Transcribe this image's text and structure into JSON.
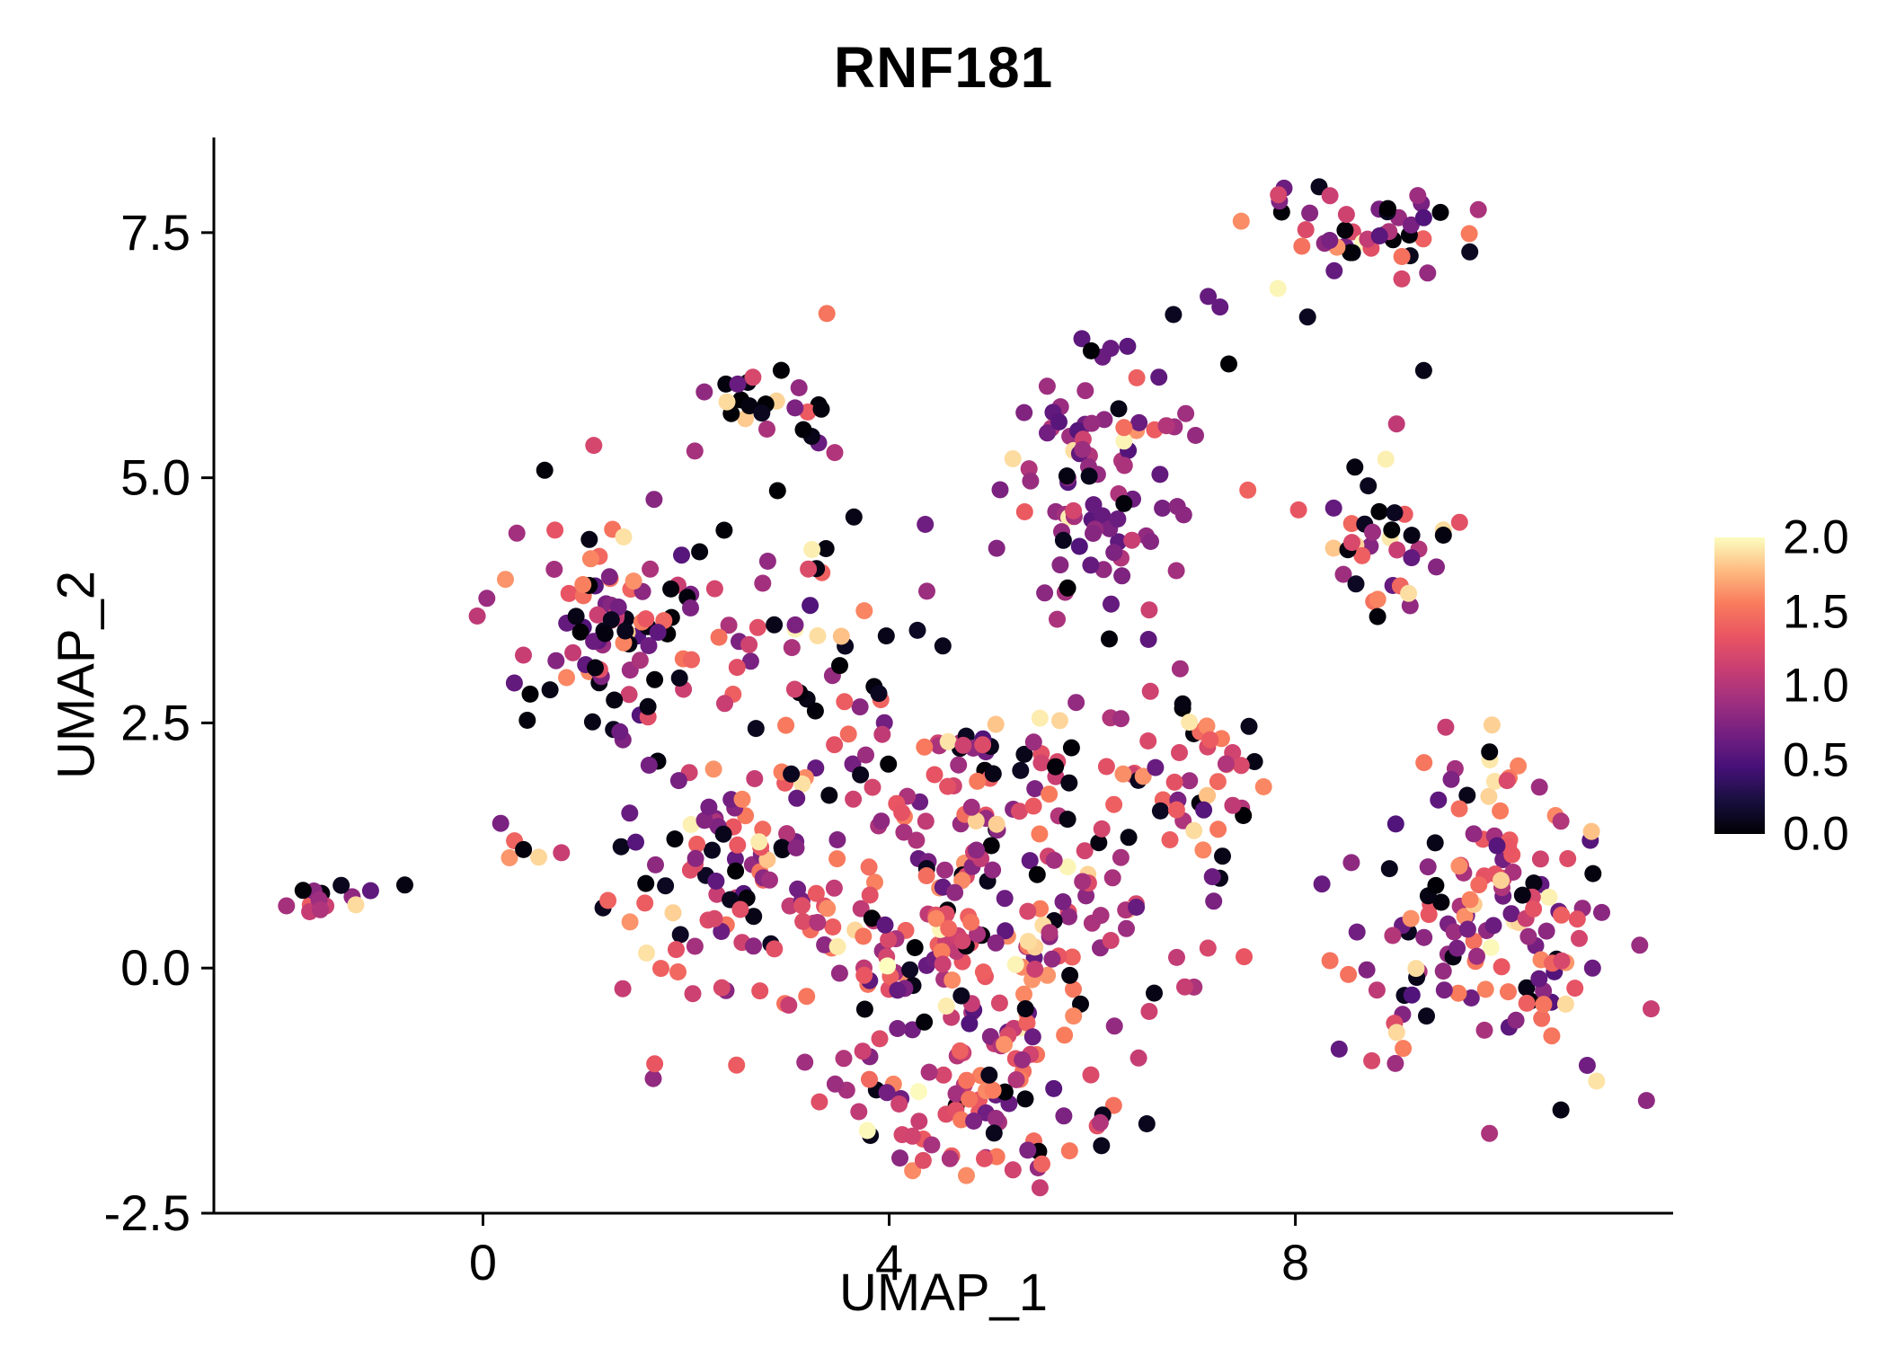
{
  "chart_data": {
    "type": "scatter",
    "title": "RNF181",
    "xlabel": "UMAP_1",
    "ylabel": "UMAP_2",
    "xlim": [
      -2.65,
      11.72
    ],
    "ylim": [
      -2.5,
      8.47
    ],
    "grid": false,
    "legend_position": "right",
    "xticks": [
      {
        "value": 0,
        "label": "0"
      },
      {
        "value": 4,
        "label": "4"
      },
      {
        "value": 8,
        "label": "8"
      }
    ],
    "yticks": [
      {
        "value": -2.5,
        "label": "-2.5"
      },
      {
        "value": 0,
        "label": "0.0"
      },
      {
        "value": 2.5,
        "label": "2.5"
      },
      {
        "value": 5,
        "label": "5.0"
      },
      {
        "value": 7.5,
        "label": "7.5"
      }
    ],
    "colorbar": {
      "range": [
        0,
        2
      ],
      "ticks": [
        {
          "value": 2.0,
          "label": "2.0"
        },
        {
          "value": 1.5,
          "label": "1.5"
        },
        {
          "value": 1.0,
          "label": "1.0"
        },
        {
          "value": 0.5,
          "label": "0.5"
        },
        {
          "value": 0.0,
          "label": "0.0"
        }
      ],
      "stops": [
        "#000004",
        "#180f3e",
        "#451077",
        "#721f81",
        "#9f2f7f",
        "#c83e73",
        "#e95562",
        "#f97c5d",
        "#febb81",
        "#fcfdbf"
      ]
    },
    "point_radius": 9.5,
    "seed": 11,
    "expr_levels": [
      [
        0,
        0.12
      ],
      [
        0.5,
        1.0
      ],
      [
        1.05,
        1.65
      ],
      [
        1.8,
        2.0
      ]
    ],
    "clusters": [
      {
        "name": "far-left-small",
        "cx": -1.45,
        "cy": 0.72,
        "sx": 0.22,
        "sy": 0.09,
        "n": 13,
        "mix": [
          0.2,
          0.4,
          0.3,
          0.1
        ]
      },
      {
        "name": "far-left-outlier",
        "cx": -0.75,
        "cy": 0.8,
        "sx": 0.05,
        "sy": 0.04,
        "n": 1,
        "mix": [
          1.0,
          0.0,
          0.0,
          0.0
        ]
      },
      {
        "name": "left-edge-pair",
        "cx": 0.45,
        "cy": 1.25,
        "sx": 0.18,
        "sy": 0.1,
        "n": 6,
        "mix": [
          0.3,
          0.1,
          0.5,
          0.1
        ]
      },
      {
        "name": "top-right",
        "cx": 8.6,
        "cy": 7.5,
        "sx": 0.55,
        "sy": 0.2,
        "n": 46,
        "mix": [
          0.3,
          0.3,
          0.32,
          0.08
        ]
      },
      {
        "name": "top-right-stragglers",
        "cx": 8.3,
        "cy": 6.5,
        "sx": 0.75,
        "sy": 0.4,
        "n": 5,
        "mix": [
          0.2,
          0.7,
          0.1,
          0.0
        ]
      },
      {
        "name": "upper-mid",
        "cx": 2.85,
        "cy": 5.75,
        "sx": 0.3,
        "sy": 0.33,
        "n": 27,
        "mix": [
          0.28,
          0.24,
          0.38,
          0.1
        ]
      },
      {
        "name": "purple-top-center",
        "cx": 6.05,
        "cy": 5.05,
        "sx": 0.46,
        "sy": 0.6,
        "n": 82,
        "mix": [
          0.06,
          0.82,
          0.1,
          0.02
        ]
      },
      {
        "name": "right-mid",
        "cx": 8.85,
        "cy": 4.3,
        "sx": 0.38,
        "sy": 0.4,
        "n": 38,
        "mix": [
          0.25,
          0.35,
          0.3,
          0.1
        ]
      },
      {
        "name": "left-big",
        "cx": 1.25,
        "cy": 3.6,
        "sx": 0.5,
        "sy": 0.58,
        "n": 95,
        "mix": [
          0.22,
          0.42,
          0.31,
          0.05
        ]
      },
      {
        "name": "mid-sparse",
        "cx": 3.3,
        "cy": 3.4,
        "sx": 0.85,
        "sy": 0.65,
        "n": 40,
        "mix": [
          0.3,
          0.3,
          0.35,
          0.05
        ]
      },
      {
        "name": "center-upper",
        "cx": 5.0,
        "cy": 2.1,
        "sx": 1.0,
        "sy": 0.45,
        "n": 55,
        "mix": [
          0.25,
          0.25,
          0.45,
          0.05
        ]
      },
      {
        "name": "center-left",
        "cx": 2.3,
        "cy": 0.8,
        "sx": 0.5,
        "sy": 0.75,
        "n": 65,
        "mix": [
          0.2,
          0.35,
          0.4,
          0.05
        ]
      },
      {
        "name": "center-main",
        "cx": 4.7,
        "cy": 0.35,
        "sx": 1.15,
        "sy": 0.9,
        "n": 250,
        "mix": [
          0.13,
          0.27,
          0.52,
          0.08
        ]
      },
      {
        "name": "center-lower",
        "cx": 4.9,
        "cy": -1.35,
        "sx": 0.75,
        "sy": 0.4,
        "n": 72,
        "mix": [
          0.15,
          0.35,
          0.45,
          0.05
        ]
      },
      {
        "name": "center-right-bump",
        "cx": 6.9,
        "cy": 1.8,
        "sx": 0.45,
        "sy": 0.5,
        "n": 40,
        "mix": [
          0.2,
          0.2,
          0.48,
          0.12
        ]
      },
      {
        "name": "right-big",
        "cx": 9.95,
        "cy": 0.35,
        "sx": 0.7,
        "sy": 0.8,
        "n": 135,
        "mix": [
          0.12,
          0.38,
          0.42,
          0.08
        ]
      },
      {
        "name": "right-big-top",
        "cx": 9.7,
        "cy": 1.95,
        "sx": 0.35,
        "sy": 0.22,
        "n": 14,
        "mix": [
          0.1,
          0.3,
          0.5,
          0.1
        ]
      },
      {
        "name": "scatter-noise",
        "cx": 5.0,
        "cy": 3.3,
        "sx": 1.6,
        "sy": 0.9,
        "n": 22,
        "mix": [
          0.45,
          0.35,
          0.2,
          0.0
        ]
      }
    ]
  }
}
